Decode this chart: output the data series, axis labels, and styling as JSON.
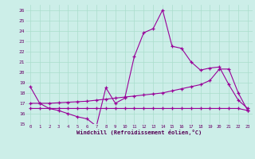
{
  "bg_color": "#cceee8",
  "grid_color": "#aaddcc",
  "line_color": "#990099",
  "xlabel": "Windchill (Refroidissement éolien,°C)",
  "xlim": [
    -0.5,
    23.5
  ],
  "ylim": [
    15,
    26.5
  ],
  "xticks": [
    0,
    1,
    2,
    3,
    4,
    5,
    6,
    7,
    8,
    9,
    10,
    11,
    12,
    13,
    14,
    15,
    16,
    17,
    18,
    19,
    20,
    21,
    22,
    23
  ],
  "yticks": [
    15,
    16,
    17,
    18,
    19,
    20,
    21,
    22,
    23,
    24,
    25,
    26
  ],
  "series1_x": [
    0,
    1,
    2,
    3,
    4,
    5,
    6,
    7,
    8,
    9,
    10,
    11,
    12,
    13,
    14,
    15,
    16,
    17,
    18,
    19,
    20,
    21,
    22,
    23
  ],
  "series1_y": [
    18.6,
    17.0,
    16.5,
    16.3,
    16.0,
    15.7,
    15.5,
    14.8,
    18.5,
    17.0,
    17.5,
    21.5,
    23.8,
    24.2,
    26.0,
    22.5,
    22.3,
    21.0,
    20.2,
    20.4,
    20.5,
    18.8,
    17.3,
    16.5
  ],
  "series2_x": [
    0,
    1,
    2,
    3,
    4,
    5,
    6,
    7,
    8,
    9,
    10,
    11,
    12,
    13,
    14,
    15,
    16,
    17,
    18,
    19,
    20,
    21,
    22,
    23
  ],
  "series2_y": [
    17.0,
    17.0,
    17.0,
    17.05,
    17.1,
    17.15,
    17.2,
    17.3,
    17.4,
    17.5,
    17.6,
    17.7,
    17.8,
    17.9,
    18.0,
    18.2,
    18.4,
    18.6,
    18.8,
    19.2,
    20.3,
    20.3,
    18.0,
    16.3
  ],
  "series3_x": [
    0,
    1,
    2,
    3,
    4,
    5,
    6,
    7,
    8,
    9,
    10,
    11,
    12,
    13,
    14,
    15,
    16,
    17,
    18,
    19,
    20,
    21,
    22,
    23
  ],
  "series3_y": [
    16.5,
    16.5,
    16.5,
    16.5,
    16.5,
    16.5,
    16.5,
    16.5,
    16.5,
    16.5,
    16.5,
    16.5,
    16.5,
    16.5,
    16.5,
    16.5,
    16.5,
    16.5,
    16.5,
    16.5,
    16.5,
    16.5,
    16.5,
    16.3
  ]
}
